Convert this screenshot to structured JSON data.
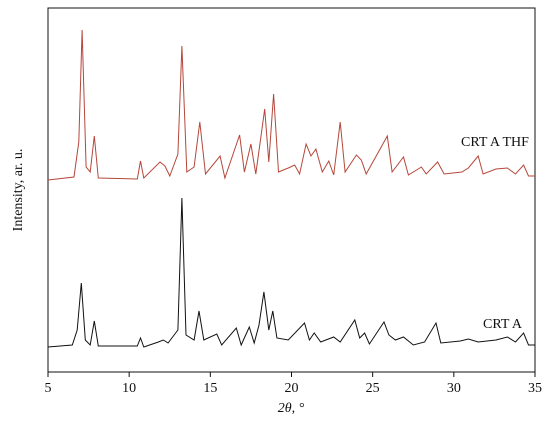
{
  "chart_data": {
    "type": "line",
    "x_label": "2θ, °",
    "y_label": "Intensity, ar. u.",
    "xlim": [
      5,
      35
    ],
    "xticks": [
      5,
      10,
      15,
      20,
      25,
      30,
      35
    ],
    "ylim": [
      0,
      364
    ],
    "series": [
      {
        "name": "CRT A THF",
        "color": "#b5473a",
        "x": [
          5,
          6.6,
          6.9,
          7.1,
          7.35,
          7.6,
          7.85,
          8.1,
          10.5,
          10.7,
          10.9,
          11.9,
          12.2,
          12.5,
          13.0,
          13.25,
          13.55,
          14.0,
          14.35,
          14.7,
          15.6,
          15.9,
          16.8,
          17.1,
          17.5,
          17.8,
          18.35,
          18.6,
          18.9,
          19.2,
          19.8,
          20.2,
          20.5,
          20.9,
          21.2,
          21.5,
          21.9,
          22.3,
          22.6,
          23.0,
          23.3,
          24.0,
          24.3,
          24.6,
          25.9,
          26.2,
          26.9,
          27.2,
          28.0,
          28.3,
          29.0,
          29.4,
          30.5,
          30.9,
          31.5,
          31.8,
          32.6,
          33.3,
          33.8,
          34.3,
          34.6,
          35
        ],
        "values": [
          192,
          195,
          230,
          342,
          205,
          200,
          236,
          194,
          193,
          211,
          194,
          210,
          206,
          196,
          218,
          326,
          200,
          205,
          250,
          198,
          216,
          194,
          237,
          200,
          228,
          198,
          263,
          210,
          278,
          200,
          204,
          207,
          198,
          228,
          216,
          223,
          200,
          211,
          197,
          250,
          200,
          217,
          212,
          198,
          236,
          200,
          215,
          197,
          205,
          198,
          210,
          198,
          200,
          204,
          216,
          198,
          203,
          204,
          198,
          207,
          196,
          196
        ]
      },
      {
        "name": "CRT A",
        "color": "#111111",
        "x": [
          5,
          6.5,
          6.8,
          7.05,
          7.3,
          7.6,
          7.85,
          8.1,
          10.5,
          10.7,
          10.9,
          11.8,
          12.1,
          12.4,
          13.0,
          13.25,
          13.5,
          14.0,
          14.3,
          14.6,
          15.4,
          15.7,
          16.6,
          16.9,
          17.4,
          17.7,
          18.0,
          18.3,
          18.6,
          18.85,
          19.1,
          19.8,
          20.8,
          21.1,
          21.4,
          21.8,
          22.6,
          23.0,
          23.9,
          24.2,
          24.5,
          24.8,
          25.7,
          26.0,
          26.4,
          26.9,
          27.5,
          28.2,
          28.9,
          29.2,
          30.4,
          30.9,
          31.5,
          32.6,
          33.3,
          33.8,
          34.3,
          34.6,
          35
        ],
        "values": [
          25,
          27,
          42,
          89,
          32,
          27,
          51,
          26,
          26,
          34,
          25,
          30,
          32,
          29,
          42,
          174,
          37,
          32,
          61,
          32,
          38,
          27,
          44,
          27,
          45,
          29,
          47,
          80,
          42,
          61,
          34,
          32,
          49,
          32,
          39,
          30,
          35,
          30,
          52,
          34,
          39,
          28,
          50,
          37,
          32,
          35,
          27,
          30,
          49,
          29,
          31,
          33,
          30,
          32,
          35,
          30,
          39,
          27,
          27
        ]
      }
    ]
  }
}
